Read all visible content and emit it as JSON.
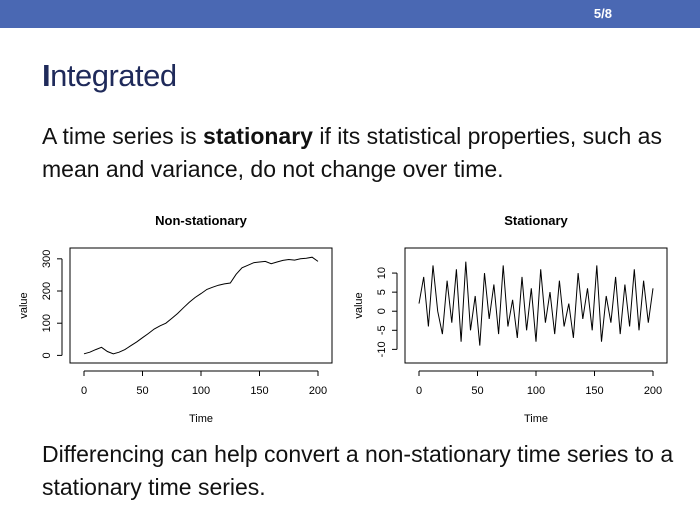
{
  "slide": {
    "page_number": "5/8",
    "title_first_letter": "I",
    "title_rest": "ntegrated",
    "intro": {
      "before": "A time series is ",
      "emphasis": "stationary",
      "after": " if its statistical properties, such as mean and variance, do not change over time."
    },
    "footer_text": "Differencing can help convert a non-stationary time series to a stationary time series."
  },
  "colors": {
    "header_bar": "#4a68b3",
    "title": "#1f2a5a",
    "line": "#000000"
  },
  "chart_data": [
    {
      "type": "line",
      "title": "Non-stationary",
      "xlabel": "Time",
      "ylabel": "value",
      "xlim": [
        0,
        200
      ],
      "ylim": [
        -5,
        315
      ],
      "xticks": [
        0,
        50,
        100,
        150,
        200
      ],
      "yticks": [
        0,
        100,
        200,
        300
      ],
      "grid": false,
      "series": [
        {
          "x": [
            0,
            5,
            10,
            15,
            20,
            25,
            30,
            35,
            40,
            45,
            50,
            55,
            60,
            65,
            70,
            75,
            80,
            85,
            90,
            95,
            100,
            105,
            110,
            115,
            120,
            125,
            130,
            135,
            140,
            145,
            150,
            155,
            160,
            165,
            170,
            175,
            180,
            185,
            190,
            195,
            200
          ],
          "values": [
            5,
            10,
            18,
            25,
            12,
            5,
            10,
            18,
            30,
            42,
            55,
            68,
            82,
            92,
            100,
            115,
            130,
            148,
            165,
            180,
            192,
            205,
            212,
            218,
            222,
            225,
            252,
            272,
            280,
            288,
            290,
            292,
            285,
            290,
            295,
            298,
            296,
            300,
            302,
            305,
            292
          ]
        }
      ]
    },
    {
      "type": "line",
      "title": "Stationary",
      "xlabel": "Time",
      "ylabel": "value",
      "xlim": [
        0,
        200
      ],
      "ylim": [
        -12,
        15
      ],
      "xticks": [
        0,
        50,
        100,
        150,
        200
      ],
      "yticks": [
        -10,
        -5,
        0,
        5,
        10
      ],
      "grid": false,
      "series": [
        {
          "x": [
            0,
            4,
            8,
            12,
            16,
            20,
            24,
            28,
            32,
            36,
            40,
            44,
            48,
            52,
            56,
            60,
            64,
            68,
            72,
            76,
            80,
            84,
            88,
            92,
            96,
            100,
            104,
            108,
            112,
            116,
            120,
            124,
            128,
            132,
            136,
            140,
            144,
            148,
            152,
            156,
            160,
            164,
            168,
            172,
            176,
            180,
            184,
            188,
            192,
            196,
            200
          ],
          "values": [
            2,
            9,
            -4,
            12,
            0,
            -6,
            8,
            -3,
            11,
            -8,
            13,
            -5,
            4,
            -9,
            10,
            -2,
            7,
            -6,
            12,
            -4,
            3,
            -7,
            9,
            -5,
            6,
            -8,
            11,
            -3,
            5,
            -6,
            8,
            -4,
            2,
            -7,
            10,
            -2,
            6,
            -5,
            12,
            -8,
            4,
            -3,
            9,
            -6,
            7,
            -4,
            11,
            -5,
            8,
            -3,
            6
          ]
        }
      ]
    }
  ]
}
